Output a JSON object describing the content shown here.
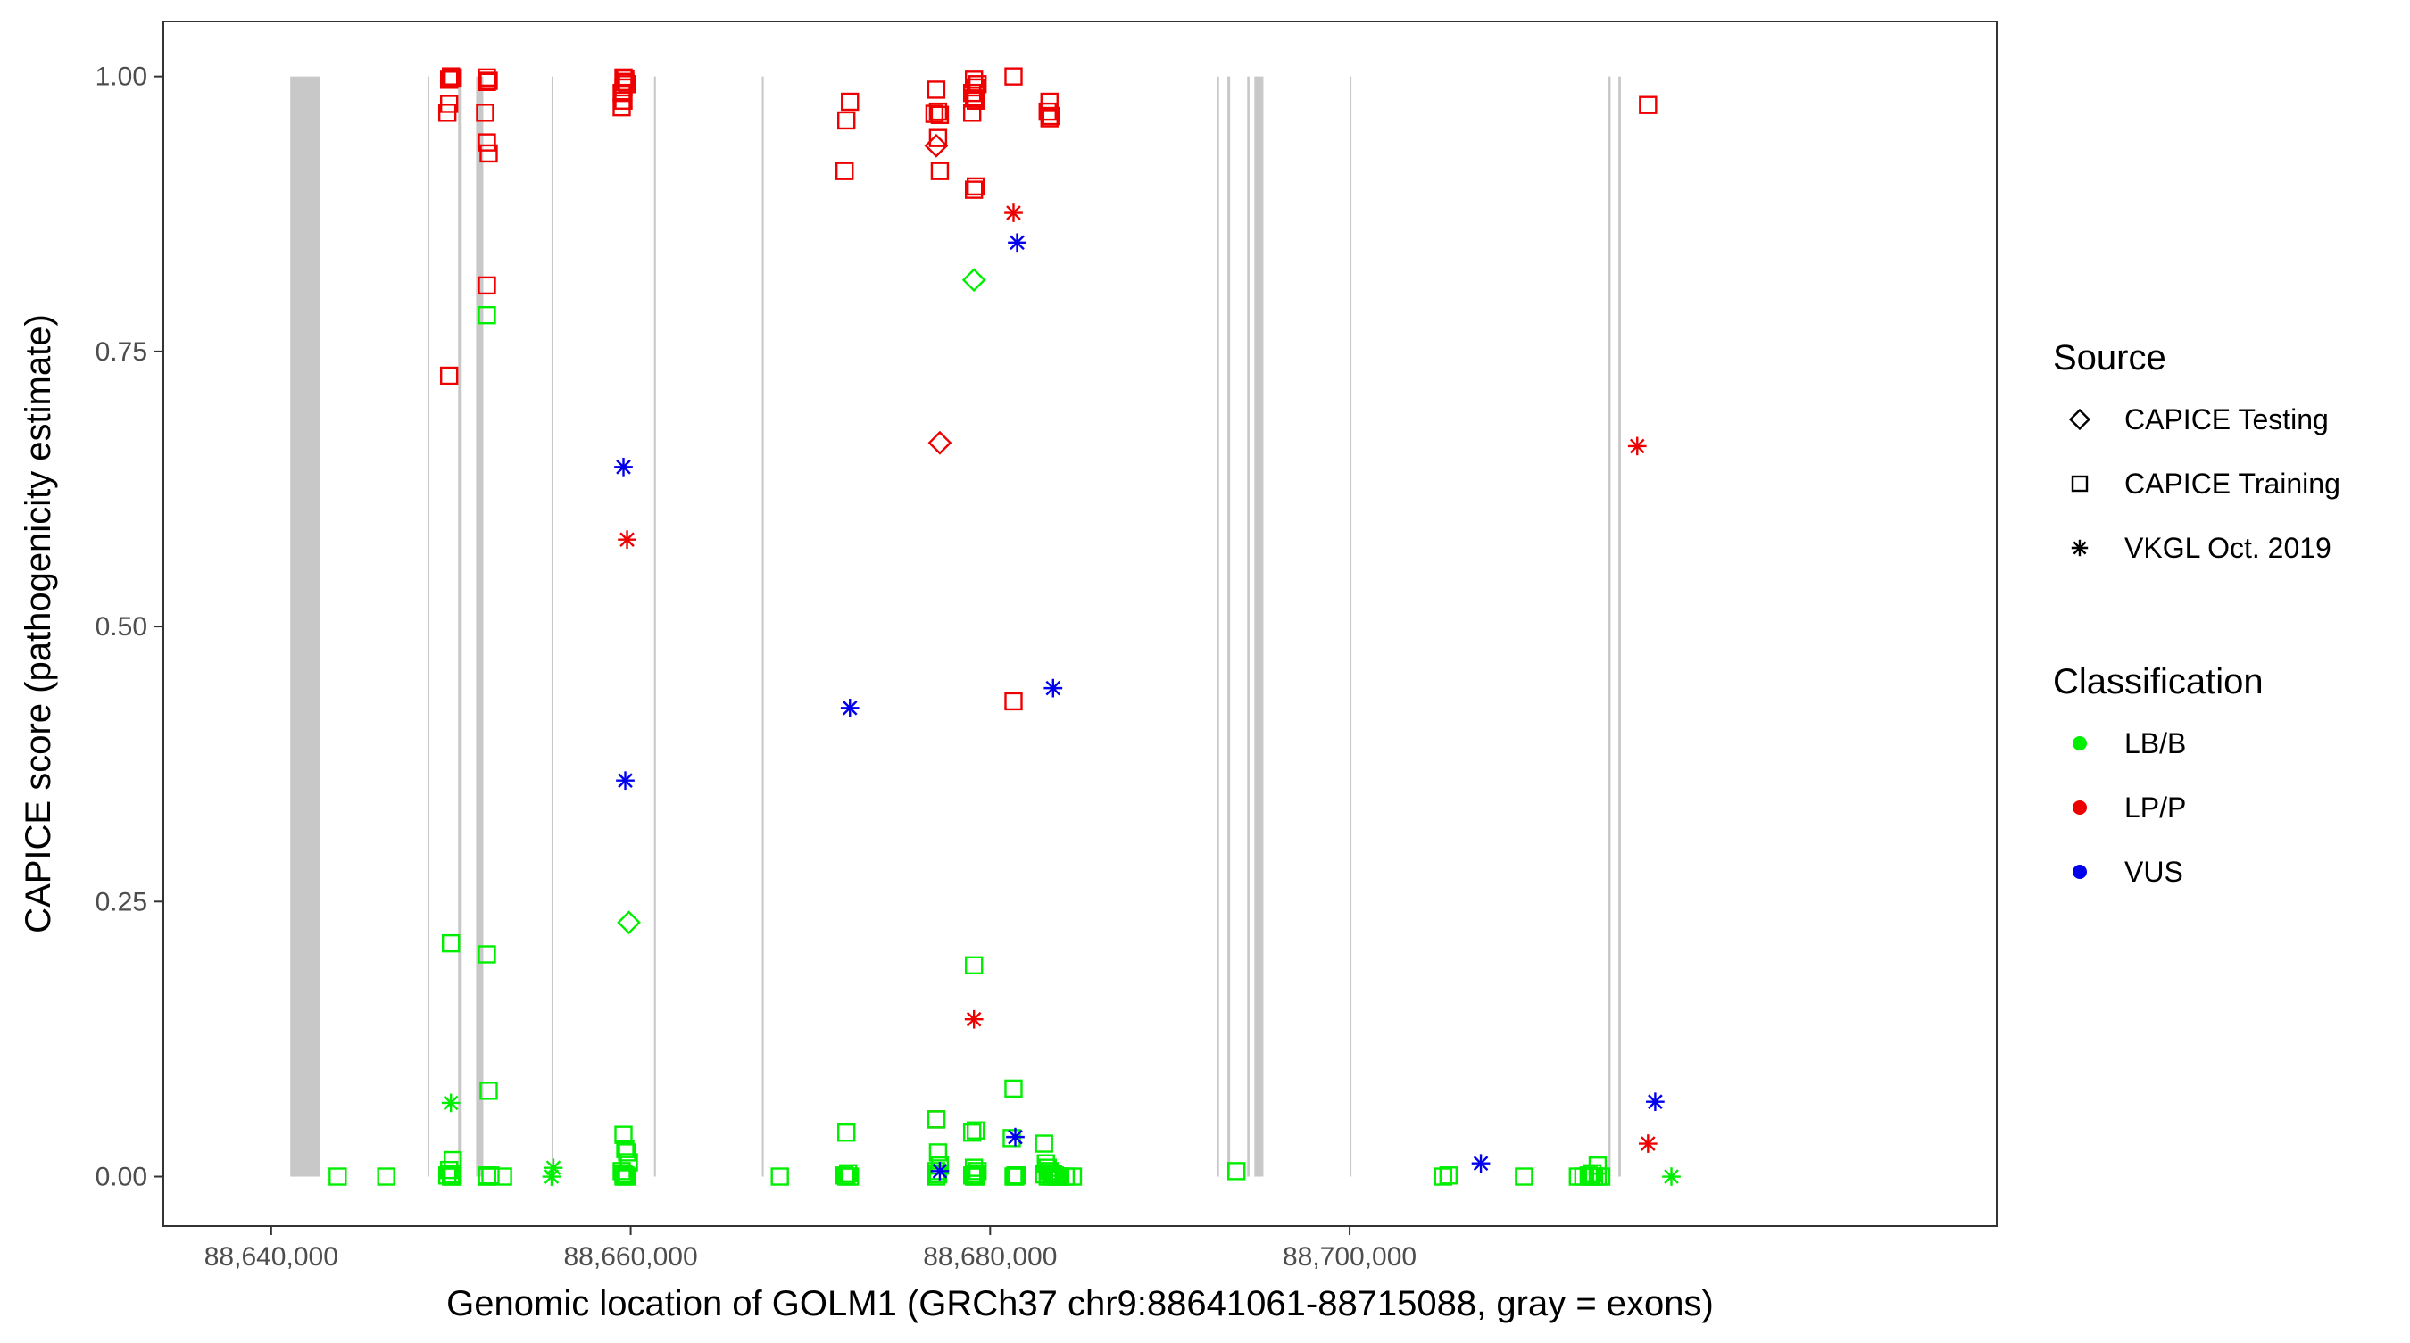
{
  "chart_data": {
    "type": "scatter",
    "title": "",
    "xlabel": "Genomic location of GOLM1 (GRCh37 chr9:88641061-88715088, gray = exons)",
    "ylabel": "CAPICE score (pathogenicity estimate)",
    "xlim": [
      88634000,
      88736000
    ],
    "ylim": [
      -0.045,
      1.05
    ],
    "x_ticks": [
      88640000,
      88660000,
      88680000,
      88700000
    ],
    "x_tick_labels": [
      "88,640,000",
      "88,660,000",
      "88,680,000",
      "88,700,000"
    ],
    "y_ticks": [
      0,
      0.25,
      0.5,
      0.75,
      1.0
    ],
    "y_tick_labels": [
      "0.00",
      "0.25",
      "0.50",
      "0.75",
      "1.00"
    ],
    "grid": false,
    "exon_color": "#c8c8c8",
    "exons": [
      {
        "start": 88641061,
        "end": 88642700
      },
      {
        "start": 88648700,
        "end": 88648790
      },
      {
        "start": 88650400,
        "end": 88650600
      },
      {
        "start": 88651400,
        "end": 88651800
      },
      {
        "start": 88655600,
        "end": 88655700
      },
      {
        "start": 88661300,
        "end": 88661400
      },
      {
        "start": 88667300,
        "end": 88667400
      },
      {
        "start": 88692600,
        "end": 88692730
      },
      {
        "start": 88693200,
        "end": 88693350
      },
      {
        "start": 88694300,
        "end": 88694430
      },
      {
        "start": 88694700,
        "end": 88695200
      },
      {
        "start": 88700000,
        "end": 88700100
      },
      {
        "start": 88714400,
        "end": 88714520
      },
      {
        "start": 88714950,
        "end": 88715088
      }
    ],
    "legend": {
      "placement": "right",
      "source_title": "Source",
      "source_entries": [
        {
          "label": "CAPICE Testing",
          "shape": "diamond"
        },
        {
          "label": "CAPICE Training",
          "shape": "square"
        },
        {
          "label": "VKGL Oct. 2019",
          "shape": "asterisk"
        }
      ],
      "class_title": "Classification",
      "class_entries": [
        {
          "label": "LB/B",
          "color": "#00ee00"
        },
        {
          "label": "LP/P",
          "color": "#ee0000"
        },
        {
          "label": "VUS",
          "color": "#0000ee"
        }
      ]
    },
    "series": [
      {
        "shape": "square",
        "cls": "LP/P",
        "x": [
          88650000,
          88650100,
          88649900,
          88649800,
          88649900,
          88650000,
          88652000,
          88652100,
          88651900,
          88652000,
          88652100,
          88652000,
          88652000,
          88649900,
          88659600,
          88659700,
          88659800,
          88659500,
          88659600,
          88659700,
          88659500,
          88659600,
          88672200,
          88672000,
          88671900,
          88677000,
          88677100,
          88677200,
          88676900,
          88677100,
          88677200,
          88679100,
          88679200,
          88679000,
          88679100,
          88679200,
          88679000,
          88679200,
          88679100,
          88679300,
          88681300,
          88683300,
          88683200,
          88683300,
          88683400,
          88716600,
          88681300,
          88677000
        ],
        "y": [
          1.0,
          0.999,
          0.975,
          0.967,
          0.997,
          0.998,
          0.999,
          0.996,
          0.967,
          0.94,
          0.93,
          0.81,
          0.995,
          0.728,
          0.999,
          0.995,
          0.993,
          0.985,
          0.978,
          0.998,
          0.972,
          0.99,
          0.977,
          0.96,
          0.914,
          0.988,
          0.968,
          0.965,
          0.966,
          0.944,
          0.914,
          0.997,
          0.99,
          0.985,
          0.98,
          0.978,
          0.967,
          0.9,
          0.897,
          0.993,
          1.0,
          0.977,
          0.968,
          0.962,
          0.964,
          0.974,
          0.432,
          0.052
        ]
      },
      {
        "shape": "square",
        "cls": "LB/B",
        "x": [
          88643700,
          88646400,
          88650000,
          88650100,
          88649900,
          88650000,
          88650100,
          88649800,
          88652000,
          88652100,
          88652200,
          88652000,
          88652900,
          88659600,
          88659800,
          88659700,
          88659900,
          88659500,
          88659600,
          88659700,
          88659800,
          88659600,
          88668300,
          88672000,
          88672100,
          88671900,
          88672200,
          88672000,
          88677000,
          88677100,
          88677200,
          88677000,
          88677100,
          88677000,
          88679100,
          88679200,
          88679000,
          88679100,
          88679300,
          88679200,
          88679000,
          88679100,
          88681300,
          88681200,
          88681400,
          88681300,
          88681500,
          88681400,
          88683000,
          88683100,
          88683200,
          88683300,
          88683400,
          88683500,
          88683600,
          88683700,
          88683800,
          88683900,
          88684200,
          88684600,
          88683000,
          88683200,
          88683400,
          88652000,
          88693700,
          88705200,
          88705500,
          88709700,
          88712700,
          88713000,
          88713300,
          88713500,
          88713800,
          88713400,
          88713600,
          88713800,
          88714000,
          88650000,
          88652000,
          88679200,
          88652000
        ],
        "y": [
          0.0,
          0.0,
          0.212,
          0.015,
          0.006,
          0.002,
          0.0,
          0.001,
          0.202,
          0.078,
          0.001,
          0.0,
          0.0,
          0.038,
          0.022,
          0.025,
          0.013,
          0.005,
          0.002,
          0.001,
          0.0,
          0.0,
          0.0,
          0.04,
          0.003,
          0.001,
          0.0,
          0.0,
          0.052,
          0.022,
          0.01,
          0.005,
          0.002,
          0.0,
          0.192,
          0.042,
          0.04,
          0.008,
          0.005,
          0.002,
          0.001,
          0.0,
          0.08,
          0.035,
          0.001,
          0.0,
          0.001,
          0.0,
          0.03,
          0.012,
          0.008,
          0.005,
          0.003,
          0.002,
          0.001,
          0.0,
          0.0,
          0.0,
          0.0,
          0.0,
          0.002,
          0.0,
          0.0,
          0.783,
          0.005,
          0.0,
          0.001,
          0.0,
          0.0,
          0.0,
          0.001,
          0.003,
          0.01,
          0.0,
          0.0,
          0.0,
          0.0,
          0.0,
          0.0,
          0.0,
          0.001
        ]
      },
      {
        "shape": "diamond",
        "cls": "LP/P",
        "x": [
          88677000,
          88677200
        ],
        "y": [
          0.937,
          0.667
        ]
      },
      {
        "shape": "diamond",
        "cls": "LB/B",
        "x": [
          88679100,
          88659900
        ],
        "y": [
          0.815,
          0.231
        ]
      },
      {
        "shape": "asterisk",
        "cls": "LP/P",
        "x": [
          88681300,
          88659800,
          88679100,
          88716000,
          88716600
        ],
        "y": [
          0.876,
          0.579,
          0.143,
          0.664,
          0.03
        ]
      },
      {
        "shape": "asterisk",
        "cls": "VUS",
        "x": [
          88681500,
          88659600,
          88659700,
          88672200,
          88683500,
          88681400,
          88677200,
          88707300,
          88717000
        ],
        "y": [
          0.849,
          0.645,
          0.36,
          0.426,
          0.444,
          0.036,
          0.005,
          0.012,
          0.068
        ]
      },
      {
        "shape": "asterisk",
        "cls": "LB/B",
        "x": [
          88650000,
          88655700,
          88655600,
          88717900
        ],
        "y": [
          0.067,
          0.008,
          0.0,
          0.0
        ]
      }
    ]
  }
}
